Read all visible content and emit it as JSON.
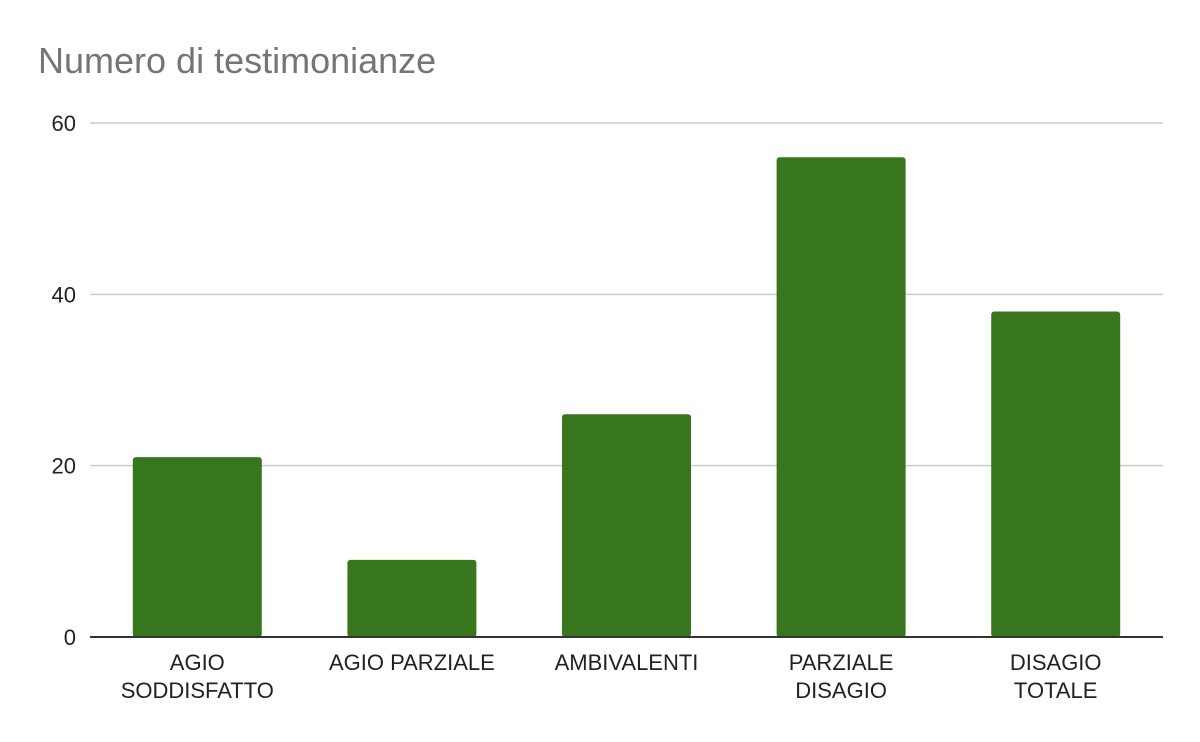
{
  "chart_data": {
    "type": "bar",
    "title": "Numero di testimonianze",
    "xlabel": "",
    "ylabel": "",
    "categories": [
      [
        "AGIO",
        "SODDISFATTO"
      ],
      [
        "AGIO PARZIALE"
      ],
      [
        "AMBIVALENTI"
      ],
      [
        "PARZIALE",
        "DISAGIO"
      ],
      [
        "DISAGIO",
        "TOTALE"
      ]
    ],
    "values": [
      21,
      9,
      26,
      56,
      38
    ],
    "ylim": [
      0,
      60
    ],
    "yticks": [
      "0",
      "20",
      "40",
      "60"
    ],
    "grid": true,
    "legend": "none",
    "bar_color": "#38761d"
  }
}
